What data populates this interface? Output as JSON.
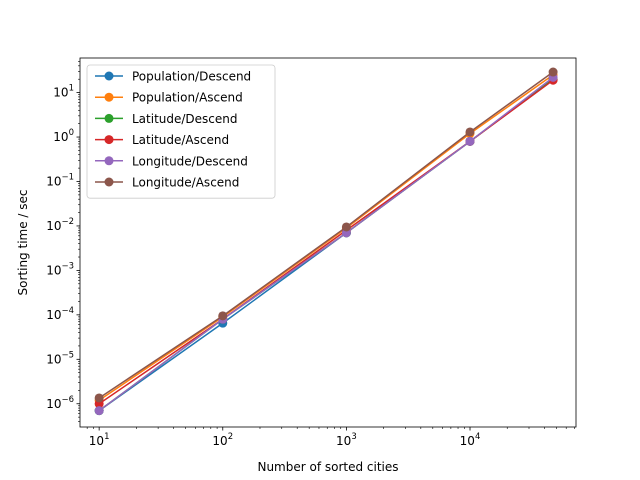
{
  "chart_data": {
    "type": "line",
    "title": "",
    "xlabel": "Number of sorted cities",
    "ylabel": "Sorting time / sec",
    "xscale": "log",
    "yscale": "log",
    "xlim": [
      7,
      72000
    ],
    "ylim": [
      3e-07,
      60
    ],
    "x": [
      10,
      100,
      1000,
      10000,
      47000
    ],
    "x_ticks": [
      {
        "value": 10,
        "base": "10",
        "exp": "1"
      },
      {
        "value": 100,
        "base": "10",
        "exp": "2"
      },
      {
        "value": 1000,
        "base": "10",
        "exp": "3"
      },
      {
        "value": 10000,
        "base": "10",
        "exp": "4"
      }
    ],
    "y_ticks": [
      {
        "value": 1e-06,
        "base": "10",
        "exp": "−6"
      },
      {
        "value": 1e-05,
        "base": "10",
        "exp": "−5"
      },
      {
        "value": 0.0001,
        "base": "10",
        "exp": "−4"
      },
      {
        "value": 0.001,
        "base": "10",
        "exp": "−3"
      },
      {
        "value": 0.01,
        "base": "10",
        "exp": "−2"
      },
      {
        "value": 0.1,
        "base": "10",
        "exp": "−1"
      },
      {
        "value": 1,
        "base": "10",
        "exp": "0"
      },
      {
        "value": 10,
        "base": "10",
        "exp": "1"
      }
    ],
    "grid": false,
    "legend": "top-left",
    "series": [
      {
        "name": "Population/Descend",
        "color": "#1f77b4",
        "values": [
          7e-07,
          6.5e-05,
          0.007,
          0.8,
          20
        ]
      },
      {
        "name": "Population/Ascend",
        "color": "#ff7f0e",
        "values": [
          1.2e-06,
          9e-05,
          0.009,
          1.2,
          25
        ]
      },
      {
        "name": "Latitude/Descend",
        "color": "#2ca02c",
        "values": [
          7e-07,
          8e-05,
          0.007,
          0.8,
          20
        ]
      },
      {
        "name": "Latitude/Ascend",
        "color": "#d62728",
        "values": [
          1e-06,
          8e-05,
          0.008,
          0.8,
          19
        ]
      },
      {
        "name": "Longitude/Descend",
        "color": "#9467bd",
        "values": [
          7e-07,
          8e-05,
          0.007,
          0.8,
          22
        ]
      },
      {
        "name": "Longitude/Ascend",
        "color": "#8c564b",
        "values": [
          1.35e-06,
          9.5e-05,
          0.0095,
          1.3,
          29
        ]
      }
    ]
  }
}
